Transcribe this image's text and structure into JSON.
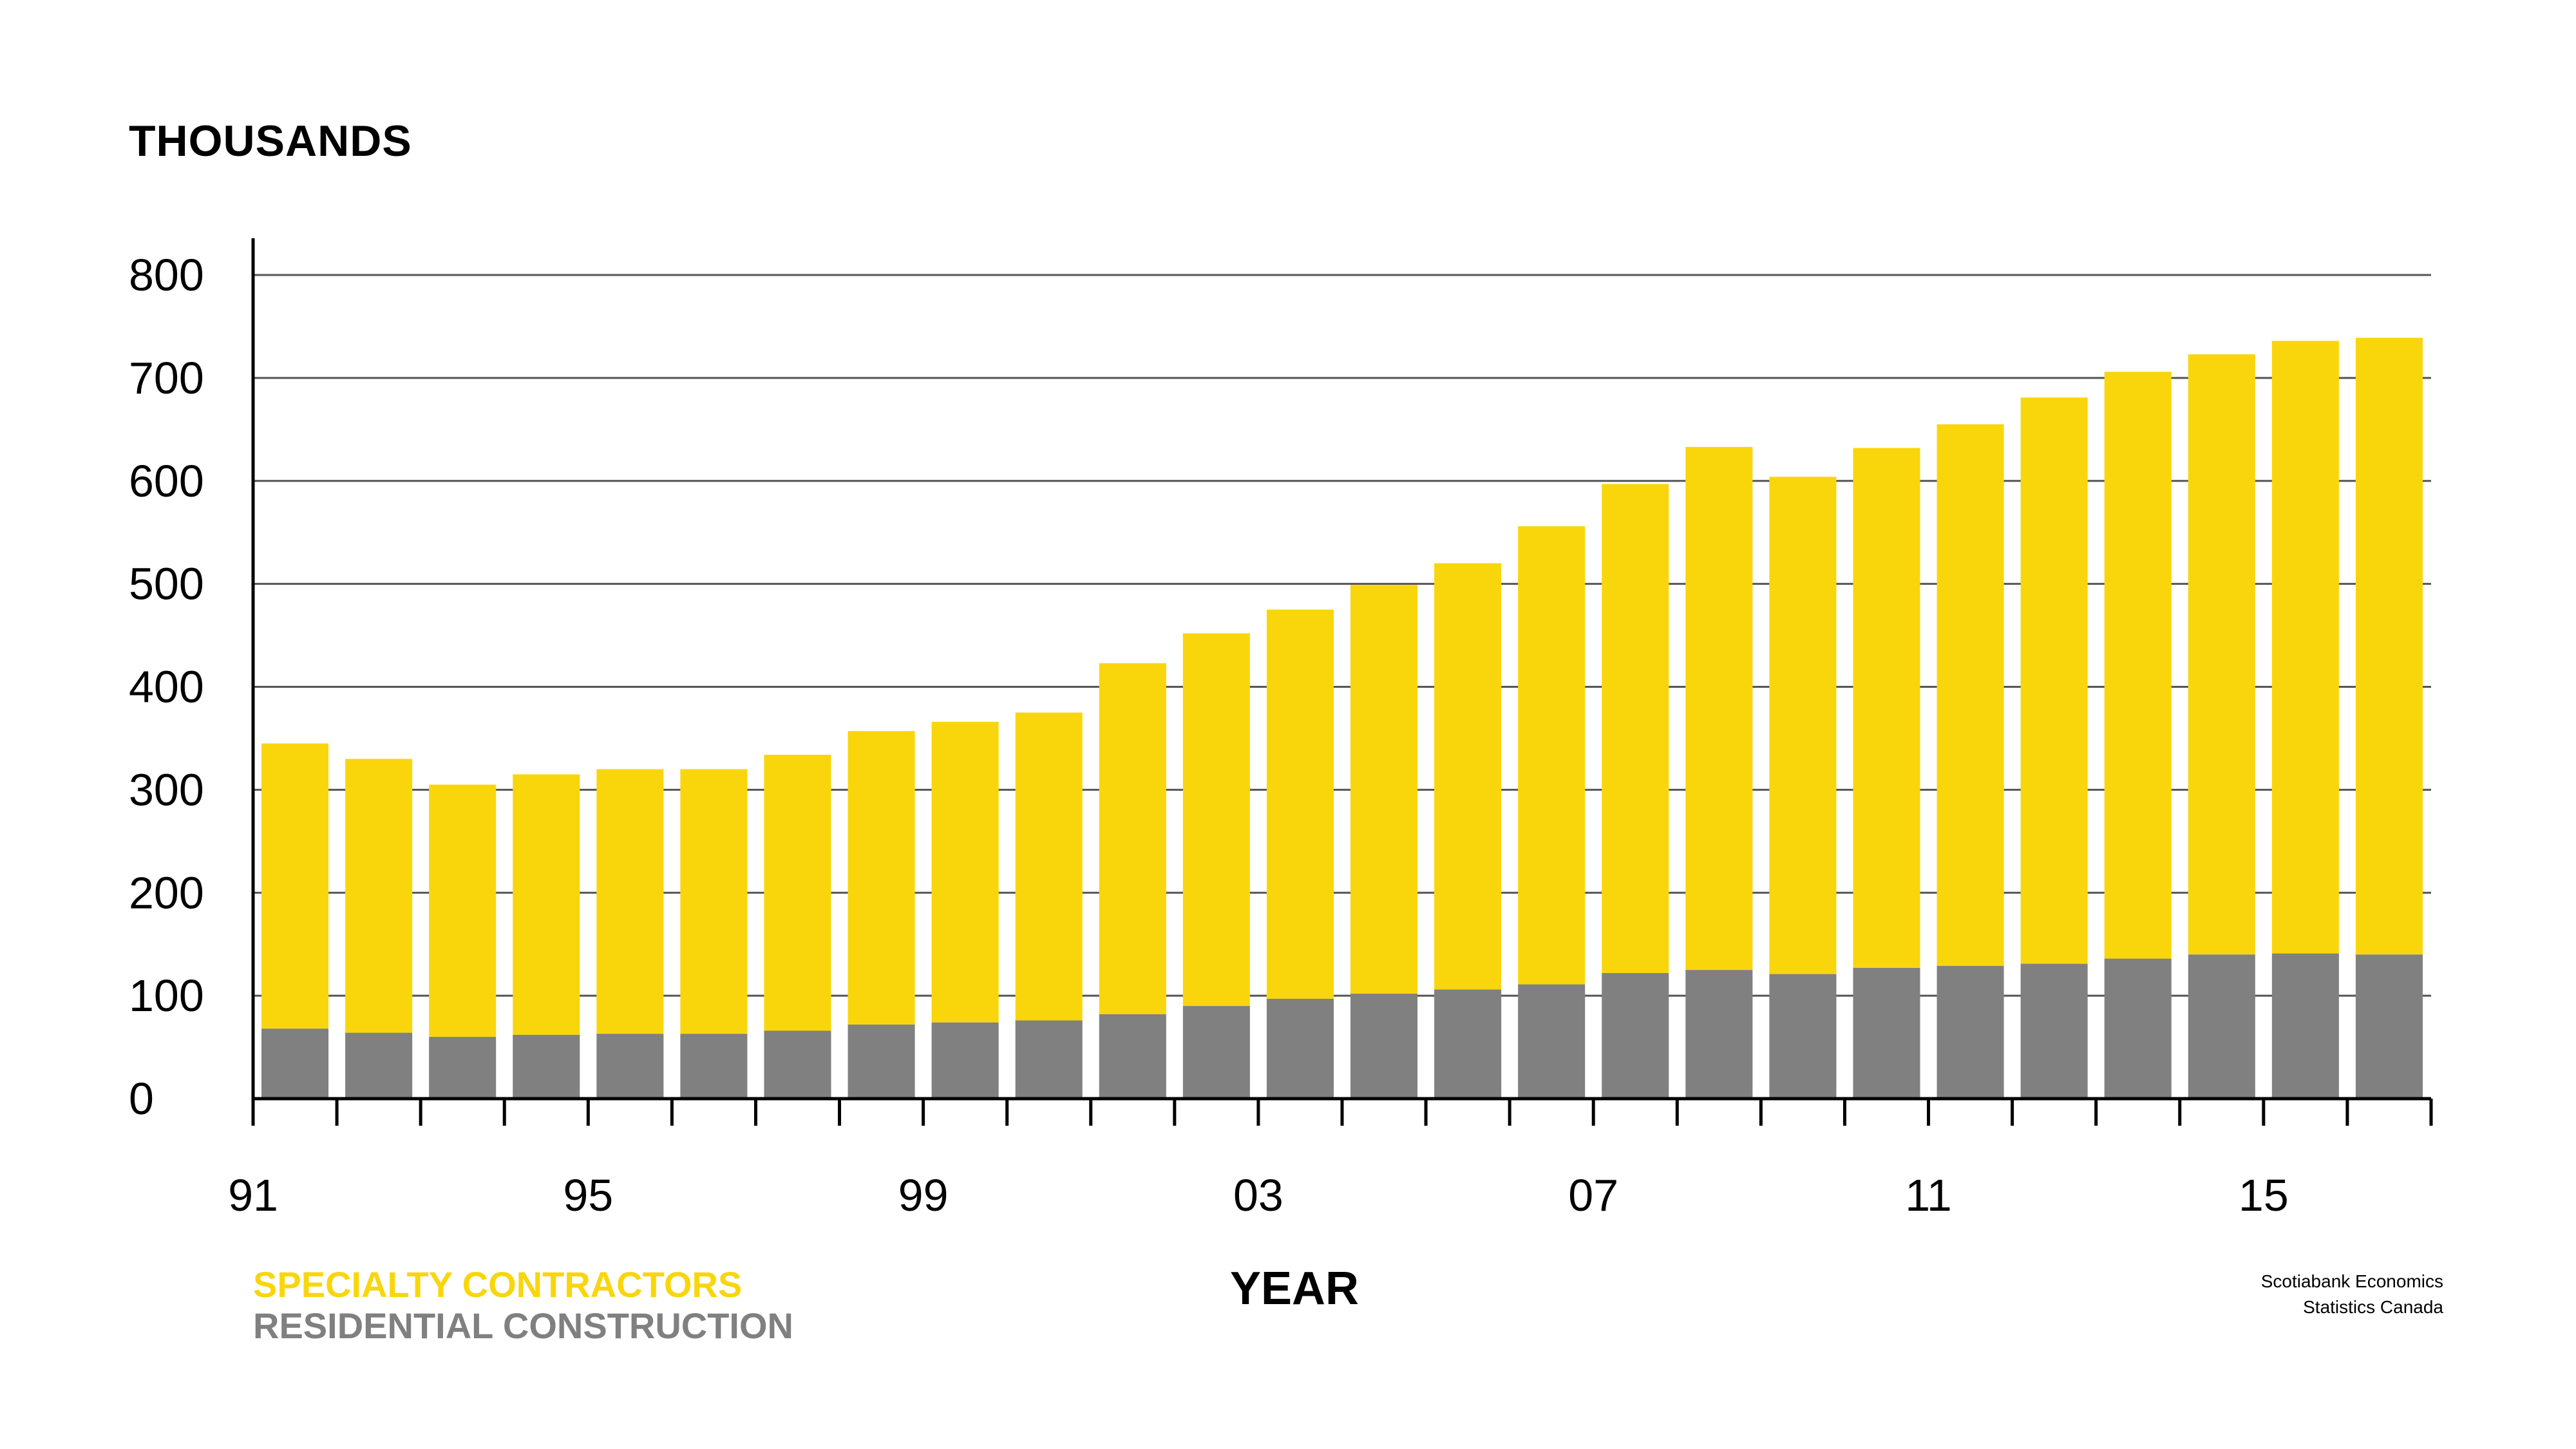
{
  "colors": {
    "specialty": "#F9D60B",
    "residential": "#808080",
    "axis": "#000000",
    "grid": "#555555"
  },
  "source": {
    "line1": "Scotiabank Economics",
    "line2": "Statistics Canada"
  },
  "chart_data": {
    "type": "bar",
    "stacked": true,
    "ylabel": "THOUSANDS",
    "xlabel": "YEAR",
    "ylim": [
      0,
      800
    ],
    "yticks": [
      0,
      100,
      200,
      300,
      400,
      500,
      600,
      700,
      800
    ],
    "grid": true,
    "legend_position": "bottom-left",
    "categories": [
      "91",
      "92",
      "93",
      "94",
      "95",
      "96",
      "97",
      "98",
      "99",
      "00",
      "01",
      "02",
      "03",
      "04",
      "05",
      "06",
      "07",
      "08",
      "09",
      "10",
      "11",
      "12",
      "13",
      "14",
      "15",
      "16"
    ],
    "x_tick_labels": [
      "91",
      "95",
      "99",
      "03",
      "07",
      "11",
      "15"
    ],
    "series": [
      {
        "name": "RESIDENTIAL CONSTRUCTION",
        "values": [
          68,
          64,
          60,
          62,
          63,
          63,
          66,
          72,
          74,
          76,
          82,
          90,
          97,
          102,
          106,
          111,
          122,
          125,
          121,
          127,
          129,
          131,
          136,
          140,
          141,
          140
        ]
      },
      {
        "name": "SPECIALTY CONTRACTORS",
        "values": [
          277,
          266,
          245,
          253,
          257,
          257,
          268,
          285,
          292,
          299,
          341,
          362,
          378,
          397,
          414,
          445,
          475,
          508,
          483,
          505,
          526,
          550,
          570,
          583,
          595,
          599
        ]
      }
    ]
  }
}
